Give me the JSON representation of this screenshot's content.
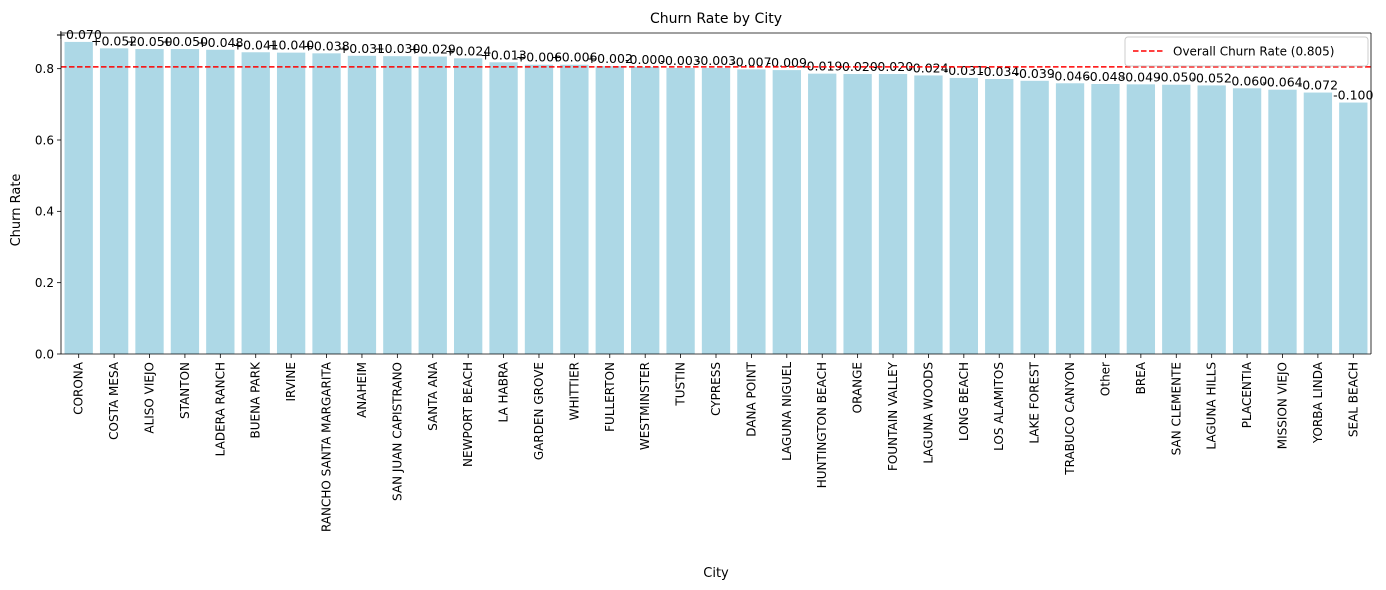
{
  "chart_data": {
    "type": "bar",
    "title": "Churn Rate by City",
    "xlabel": "City",
    "ylabel": "Churn Rate",
    "ylim": [
      0,
      0.9
    ],
    "yticks": [
      0.0,
      0.2,
      0.4,
      0.6,
      0.8
    ],
    "ytick_labels": [
      "0.0",
      "0.2",
      "0.4",
      "0.6",
      "0.8"
    ],
    "bar_color": "#add8e6",
    "categories": [
      "CORONA",
      "COSTA MESA",
      "ALISO VIEJO",
      "STANTON",
      "LADERA RANCH",
      "BUENA PARK",
      "IRVINE",
      "RANCHO SANTA MARGARITA",
      "ANAHEIM",
      "SAN JUAN CAPISTRANO",
      "SANTA ANA",
      "NEWPORT BEACH",
      "LA HABRA",
      "GARDEN GROVE",
      "WHITTIER",
      "FULLERTON",
      "WESTMINSTER",
      "TUSTIN",
      "CYPRESS",
      "DANA POINT",
      "LAGUNA NIGUEL",
      "HUNTINGTON BEACH",
      "ORANGE",
      "FOUNTAIN VALLEY",
      "LAGUNA WOODS",
      "LONG BEACH",
      "LOS ALAMITOS",
      "LAKE FOREST",
      "TRABUCO CANYON",
      "Other",
      "BREA",
      "SAN CLEMENTE",
      "LAGUNA HILLS",
      "PLACENTIA",
      "MISSION VIEJO",
      "YORBA LINDA",
      "SEAL BEACH"
    ],
    "values": [
      0.875,
      0.857,
      0.855,
      0.855,
      0.853,
      0.846,
      0.845,
      0.843,
      0.836,
      0.835,
      0.834,
      0.829,
      0.818,
      0.811,
      0.811,
      0.807,
      0.805,
      0.802,
      0.802,
      0.798,
      0.796,
      0.786,
      0.785,
      0.785,
      0.781,
      0.774,
      0.771,
      0.766,
      0.759,
      0.757,
      0.756,
      0.755,
      0.753,
      0.745,
      0.741,
      0.733,
      0.705
    ],
    "bar_labels": [
      "+0.070",
      "+0.052",
      "+0.050",
      "+0.050",
      "+0.048",
      "+0.041",
      "+0.040",
      "+0.038",
      "+0.031",
      "+0.030",
      "+0.029",
      "+0.024",
      "+0.013",
      "+0.006",
      "+0.006",
      "+0.002",
      "-0.000",
      "-0.003",
      "-0.003",
      "-0.007",
      "-0.009",
      "-0.019",
      "-0.020",
      "-0.020",
      "-0.024",
      "-0.031",
      "-0.034",
      "-0.039",
      "-0.046",
      "-0.048",
      "-0.049",
      "-0.050",
      "-0.052",
      "-0.060",
      "-0.064",
      "-0.072",
      "-0.100"
    ],
    "reference_line": {
      "value": 0.805,
      "label": "Overall Churn Rate (0.805)",
      "color": "#ff0000",
      "style": "dashed"
    },
    "legend_position": "top-right",
    "grid": false
  }
}
